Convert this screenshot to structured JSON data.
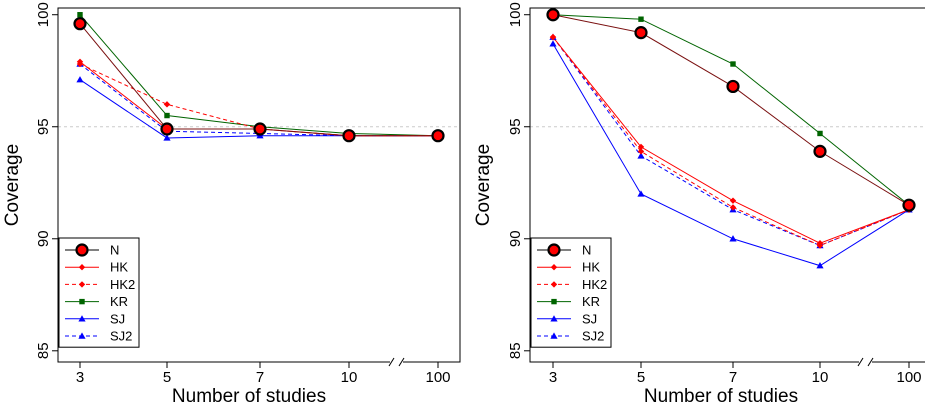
{
  "chart_data": [
    {
      "type": "line",
      "title": "",
      "xlabel": "Number of studies",
      "ylabel": "Coverage",
      "categories": [
        "3",
        "5",
        "7",
        "10",
        "100"
      ],
      "ylim": [
        84.5,
        100.3
      ],
      "yticks": [
        85,
        90,
        95,
        100
      ],
      "reference_line": 95,
      "axis_break": "between 10 and 100",
      "legend_position": "bottom-left",
      "series": [
        {
          "name": "N",
          "color": "#000000",
          "marker": "circle-large",
          "dash": false,
          "values": [
            99.6,
            94.9,
            94.9,
            94.6,
            94.6
          ]
        },
        {
          "name": "HK",
          "color": "#ff0000",
          "marker": "diamond",
          "dash": false,
          "values": [
            97.9,
            94.9,
            94.9,
            94.6,
            94.6
          ]
        },
        {
          "name": "HK2",
          "color": "#ff0000",
          "marker": "diamond",
          "dash": true,
          "values": [
            97.8,
            96.0,
            94.9,
            94.6,
            94.6
          ]
        },
        {
          "name": "KR",
          "color": "#006400",
          "marker": "square",
          "dash": false,
          "values": [
            100.0,
            95.5,
            95.0,
            94.7,
            94.6
          ]
        },
        {
          "name": "SJ",
          "color": "#0000ff",
          "marker": "triangle",
          "dash": false,
          "values": [
            97.1,
            94.5,
            94.6,
            94.6,
            94.6
          ]
        },
        {
          "name": "SJ2",
          "color": "#0000ff",
          "marker": "triangle",
          "dash": true,
          "values": [
            97.8,
            94.8,
            94.7,
            94.6,
            94.6
          ]
        }
      ]
    },
    {
      "type": "line",
      "title": "",
      "xlabel": "Number of studies",
      "ylabel": "Coverage",
      "categories": [
        "3",
        "5",
        "7",
        "10",
        "100"
      ],
      "ylim": [
        84.5,
        100.3
      ],
      "yticks": [
        85,
        90,
        95,
        100
      ],
      "reference_line": 95,
      "axis_break": "between 10 and 100",
      "legend_position": "bottom-left",
      "series": [
        {
          "name": "N",
          "color": "#000000",
          "marker": "circle-large",
          "dash": false,
          "values": [
            100.0,
            99.2,
            96.8,
            93.9,
            91.5
          ]
        },
        {
          "name": "HK",
          "color": "#ff0000",
          "marker": "diamond",
          "dash": false,
          "values": [
            99.0,
            94.1,
            91.7,
            89.8,
            91.3
          ]
        },
        {
          "name": "HK2",
          "color": "#ff0000",
          "marker": "diamond",
          "dash": true,
          "values": [
            99.0,
            93.9,
            91.4,
            89.7,
            91.3
          ]
        },
        {
          "name": "KR",
          "color": "#006400",
          "marker": "square",
          "dash": false,
          "values": [
            100.0,
            99.8,
            97.8,
            94.7,
            91.5
          ]
        },
        {
          "name": "SJ",
          "color": "#0000ff",
          "marker": "triangle",
          "dash": false,
          "values": [
            98.7,
            92.0,
            90.0,
            88.8,
            91.3
          ]
        },
        {
          "name": "SJ2",
          "color": "#0000ff",
          "marker": "triangle",
          "dash": true,
          "values": [
            99.0,
            93.7,
            91.3,
            89.7,
            91.3
          ]
        }
      ]
    }
  ]
}
